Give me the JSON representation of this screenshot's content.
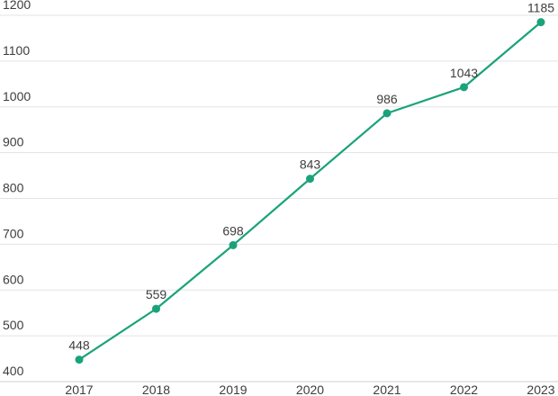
{
  "chart_data": {
    "type": "line",
    "categories": [
      "2017",
      "2018",
      "2019",
      "2020",
      "2021",
      "2022",
      "2023"
    ],
    "series": [
      {
        "values": [
          448,
          559,
          698,
          843,
          986,
          1043,
          1185
        ]
      }
    ],
    "ylim": [
      400,
      1200
    ],
    "yticks": [
      400,
      500,
      600,
      700,
      800,
      900,
      1000,
      1100,
      1200
    ],
    "grid": true,
    "legend": "none",
    "colors": {
      "line": "#1aa37a",
      "marker": "#1aa37a",
      "grid": "#e3e3e3",
      "text": "#3d3d3d"
    }
  }
}
